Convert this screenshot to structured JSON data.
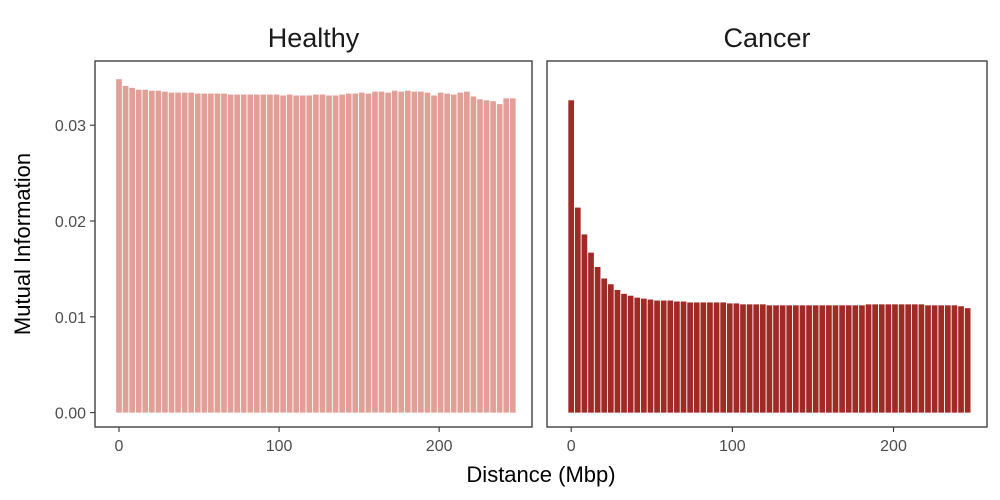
{
  "xlabel": "Distance (Mbp)",
  "ylabel": "Mutual Information",
  "chart_data": [
    {
      "type": "bar",
      "title": "Healthy",
      "color": "#e19f97",
      "xlim": [
        -15,
        258
      ],
      "ylim": [
        -0.0015,
        0.0367
      ],
      "x_ticks": [
        0,
        100,
        200
      ],
      "x_tick_labels": [
        "0",
        "100",
        "200"
      ],
      "y_ticks": [
        0,
        0.01,
        0.02,
        0.03
      ],
      "y_tick_labels": [
        "0.00",
        "0.01",
        "0.02",
        "0.03"
      ],
      "bin_width": 4.1,
      "x": [
        0,
        4.1,
        8.2,
        12.3,
        16.4,
        20.5,
        24.6,
        28.7,
        32.8,
        36.9,
        41,
        45.1,
        49.2,
        53.3,
        57.4,
        61.5,
        65.6,
        69.7,
        73.8,
        77.9,
        82,
        86.1,
        90.2,
        94.3,
        98.4,
        102.5,
        106.6,
        110.7,
        114.8,
        118.9,
        123,
        127.1,
        131.2,
        135.3,
        139.4,
        143.5,
        147.6,
        151.7,
        155.8,
        159.9,
        164,
        168.1,
        172.2,
        176.3,
        180.4,
        184.5,
        188.6,
        192.7,
        196.8,
        200.9,
        205,
        209.1,
        213.2,
        217.3,
        221.4,
        225.5,
        229.6,
        233.7,
        237.8,
        241.9,
        246
      ],
      "values": [
        0.0348,
        0.0341,
        0.0339,
        0.0337,
        0.0337,
        0.0336,
        0.0336,
        0.0335,
        0.0334,
        0.0334,
        0.0334,
        0.0334,
        0.0333,
        0.0333,
        0.0333,
        0.0333,
        0.0333,
        0.0332,
        0.0332,
        0.0332,
        0.0332,
        0.0332,
        0.0332,
        0.0332,
        0.0332,
        0.0331,
        0.0332,
        0.0331,
        0.0331,
        0.0331,
        0.0332,
        0.0332,
        0.0331,
        0.0331,
        0.0332,
        0.0333,
        0.0333,
        0.0334,
        0.0333,
        0.0335,
        0.0335,
        0.0334,
        0.0336,
        0.0335,
        0.0336,
        0.0335,
        0.0335,
        0.0334,
        0.0331,
        0.0334,
        0.0333,
        0.0332,
        0.0334,
        0.0335,
        0.033,
        0.0327,
        0.0326,
        0.0325,
        0.0322,
        0.0328,
        0.0328
      ]
    },
    {
      "type": "bar",
      "title": "Cancer",
      "color": "#9f2a26",
      "xlim": [
        -15,
        258
      ],
      "ylim": [
        -0.0015,
        0.0367
      ],
      "x_ticks": [
        0,
        100,
        200
      ],
      "x_tick_labels": [
        "0",
        "100",
        "200"
      ],
      "bin_width": 4.1,
      "x": [
        0,
        4.1,
        8.2,
        12.3,
        16.4,
        20.5,
        24.6,
        28.7,
        32.8,
        36.9,
        41,
        45.1,
        49.2,
        53.3,
        57.4,
        61.5,
        65.6,
        69.7,
        73.8,
        77.9,
        82,
        86.1,
        90.2,
        94.3,
        98.4,
        102.5,
        106.6,
        110.7,
        114.8,
        118.9,
        123,
        127.1,
        131.2,
        135.3,
        139.4,
        143.5,
        147.6,
        151.7,
        155.8,
        159.9,
        164,
        168.1,
        172.2,
        176.3,
        180.4,
        184.5,
        188.6,
        192.7,
        196.8,
        200.9,
        205,
        209.1,
        213.2,
        217.3,
        221.4,
        225.5,
        229.6,
        233.7,
        237.8,
        241.9,
        246
      ],
      "values": [
        0.0326,
        0.0214,
        0.0186,
        0.0167,
        0.0152,
        0.014,
        0.0134,
        0.0128,
        0.0124,
        0.0122,
        0.012,
        0.0119,
        0.0118,
        0.0117,
        0.0117,
        0.0117,
        0.0116,
        0.0116,
        0.0115,
        0.0115,
        0.0115,
        0.0115,
        0.0115,
        0.0115,
        0.0114,
        0.0114,
        0.0113,
        0.0113,
        0.0113,
        0.0113,
        0.0112,
        0.0112,
        0.0112,
        0.0112,
        0.0112,
        0.0112,
        0.0112,
        0.0112,
        0.0112,
        0.0112,
        0.0112,
        0.0112,
        0.0112,
        0.0112,
        0.0112,
        0.0113,
        0.0113,
        0.0113,
        0.0113,
        0.0113,
        0.0113,
        0.0113,
        0.0113,
        0.0113,
        0.0112,
        0.0112,
        0.0112,
        0.0112,
        0.0112,
        0.0111,
        0.0109
      ]
    }
  ]
}
